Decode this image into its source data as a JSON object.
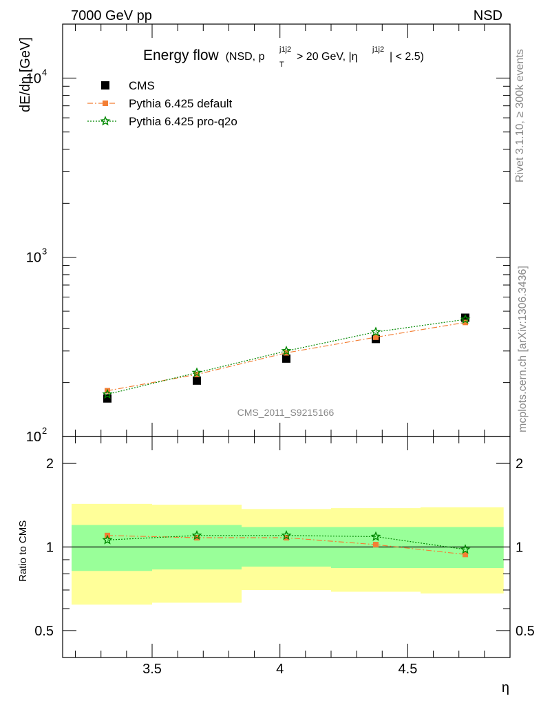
{
  "header": {
    "left": "7000 GeV pp",
    "right": "NSD"
  },
  "side_labels": {
    "rivet": "Rivet 3.1.10, ≥ 300k events",
    "mcplots": "mcplots.cern.ch [arXiv:1306.3436]"
  },
  "chart_data": [
    {
      "type": "scatter",
      "title": "Energy flow",
      "subtitle_parts": {
        "open": "(NSD, p",
        "sub": "T",
        "sup": "j1j2",
        "mid": " > 20 GeV, |η",
        "sup2": "j1j2",
        "close": "| < 2.5)"
      },
      "ylabel": "dE/dη [GeV]",
      "xlabel": "η",
      "yscale": "log",
      "ylim": [
        100,
        20000
      ],
      "xlim": [
        3.15,
        4.9
      ],
      "y_ticks": [
        {
          "value": 100,
          "base": "10",
          "exp": "2"
        },
        {
          "value": 1000,
          "base": "10",
          "exp": "3"
        },
        {
          "value": 10000,
          "base": "10",
          "exp": "4"
        }
      ],
      "watermark": "CMS_2011_S9215166",
      "legend_position": "top-left",
      "series": [
        {
          "name": "CMS",
          "color": "#000000",
          "marker": "square",
          "x": [
            3.325,
            3.675,
            4.025,
            4.375,
            4.725
          ],
          "y": [
            163,
            205,
            272,
            350,
            460
          ]
        },
        {
          "name": "Pythia 6.425 default",
          "color": "#f37f35",
          "marker": "square-small",
          "line": "dash-dot",
          "x": [
            3.325,
            3.675,
            4.025,
            4.375,
            4.725
          ],
          "y": [
            180,
            222,
            293,
            358,
            433
          ]
        },
        {
          "name": "Pythia 6.425 pro-q2o",
          "color": "#008800",
          "marker": "star",
          "line": "dotted",
          "x": [
            3.325,
            3.675,
            4.025,
            4.375,
            4.725
          ],
          "y": [
            172,
            227,
            300,
            383,
            450
          ]
        }
      ]
    },
    {
      "type": "scatter",
      "ylabel": "Ratio to CMS",
      "xlabel": "η",
      "yscale": "log",
      "ylim": [
        0.4,
        2.5
      ],
      "xlim": [
        3.15,
        4.9
      ],
      "y_ticks": [
        {
          "value": 0.5,
          "label": "0.5"
        },
        {
          "value": 1,
          "label": "1"
        },
        {
          "value": 2,
          "label": "2"
        }
      ],
      "x_ticks": [
        {
          "value": 3.5,
          "label": "3.5"
        },
        {
          "value": 4,
          "label": "4"
        },
        {
          "value": 4.5,
          "label": "4.5"
        }
      ],
      "bands": [
        {
          "x0": 3.15,
          "x1": 3.5,
          "yellow": [
            0.62,
            1.43
          ],
          "green": [
            0.82,
            1.2
          ]
        },
        {
          "x0": 3.5,
          "x1": 3.85,
          "yellow": [
            0.63,
            1.42
          ],
          "green": [
            0.83,
            1.2
          ]
        },
        {
          "x0": 3.85,
          "x1": 4.2,
          "yellow": [
            0.7,
            1.37
          ],
          "green": [
            0.85,
            1.18
          ]
        },
        {
          "x0": 4.2,
          "x1": 4.55,
          "yellow": [
            0.69,
            1.38
          ],
          "green": [
            0.84,
            1.18
          ]
        },
        {
          "x0": 4.55,
          "x1": 4.9,
          "yellow": [
            0.68,
            1.39
          ],
          "green": [
            0.84,
            1.18
          ]
        }
      ],
      "series": [
        {
          "name": "Pythia 6.425 default",
          "color": "#f37f35",
          "marker": "square-small",
          "line": "dash-dot",
          "x": [
            3.325,
            3.675,
            4.025,
            4.375,
            4.725
          ],
          "y": [
            1.1,
            1.08,
            1.08,
            1.02,
            0.94
          ]
        },
        {
          "name": "Pythia 6.425 pro-q2o",
          "color": "#008800",
          "marker": "star",
          "line": "dotted",
          "x": [
            3.325,
            3.675,
            4.025,
            4.375,
            4.725
          ],
          "y": [
            1.06,
            1.1,
            1.1,
            1.09,
            0.98
          ]
        }
      ],
      "colors": {
        "yellow": "#ffff99",
        "green": "#99ff99"
      }
    }
  ]
}
